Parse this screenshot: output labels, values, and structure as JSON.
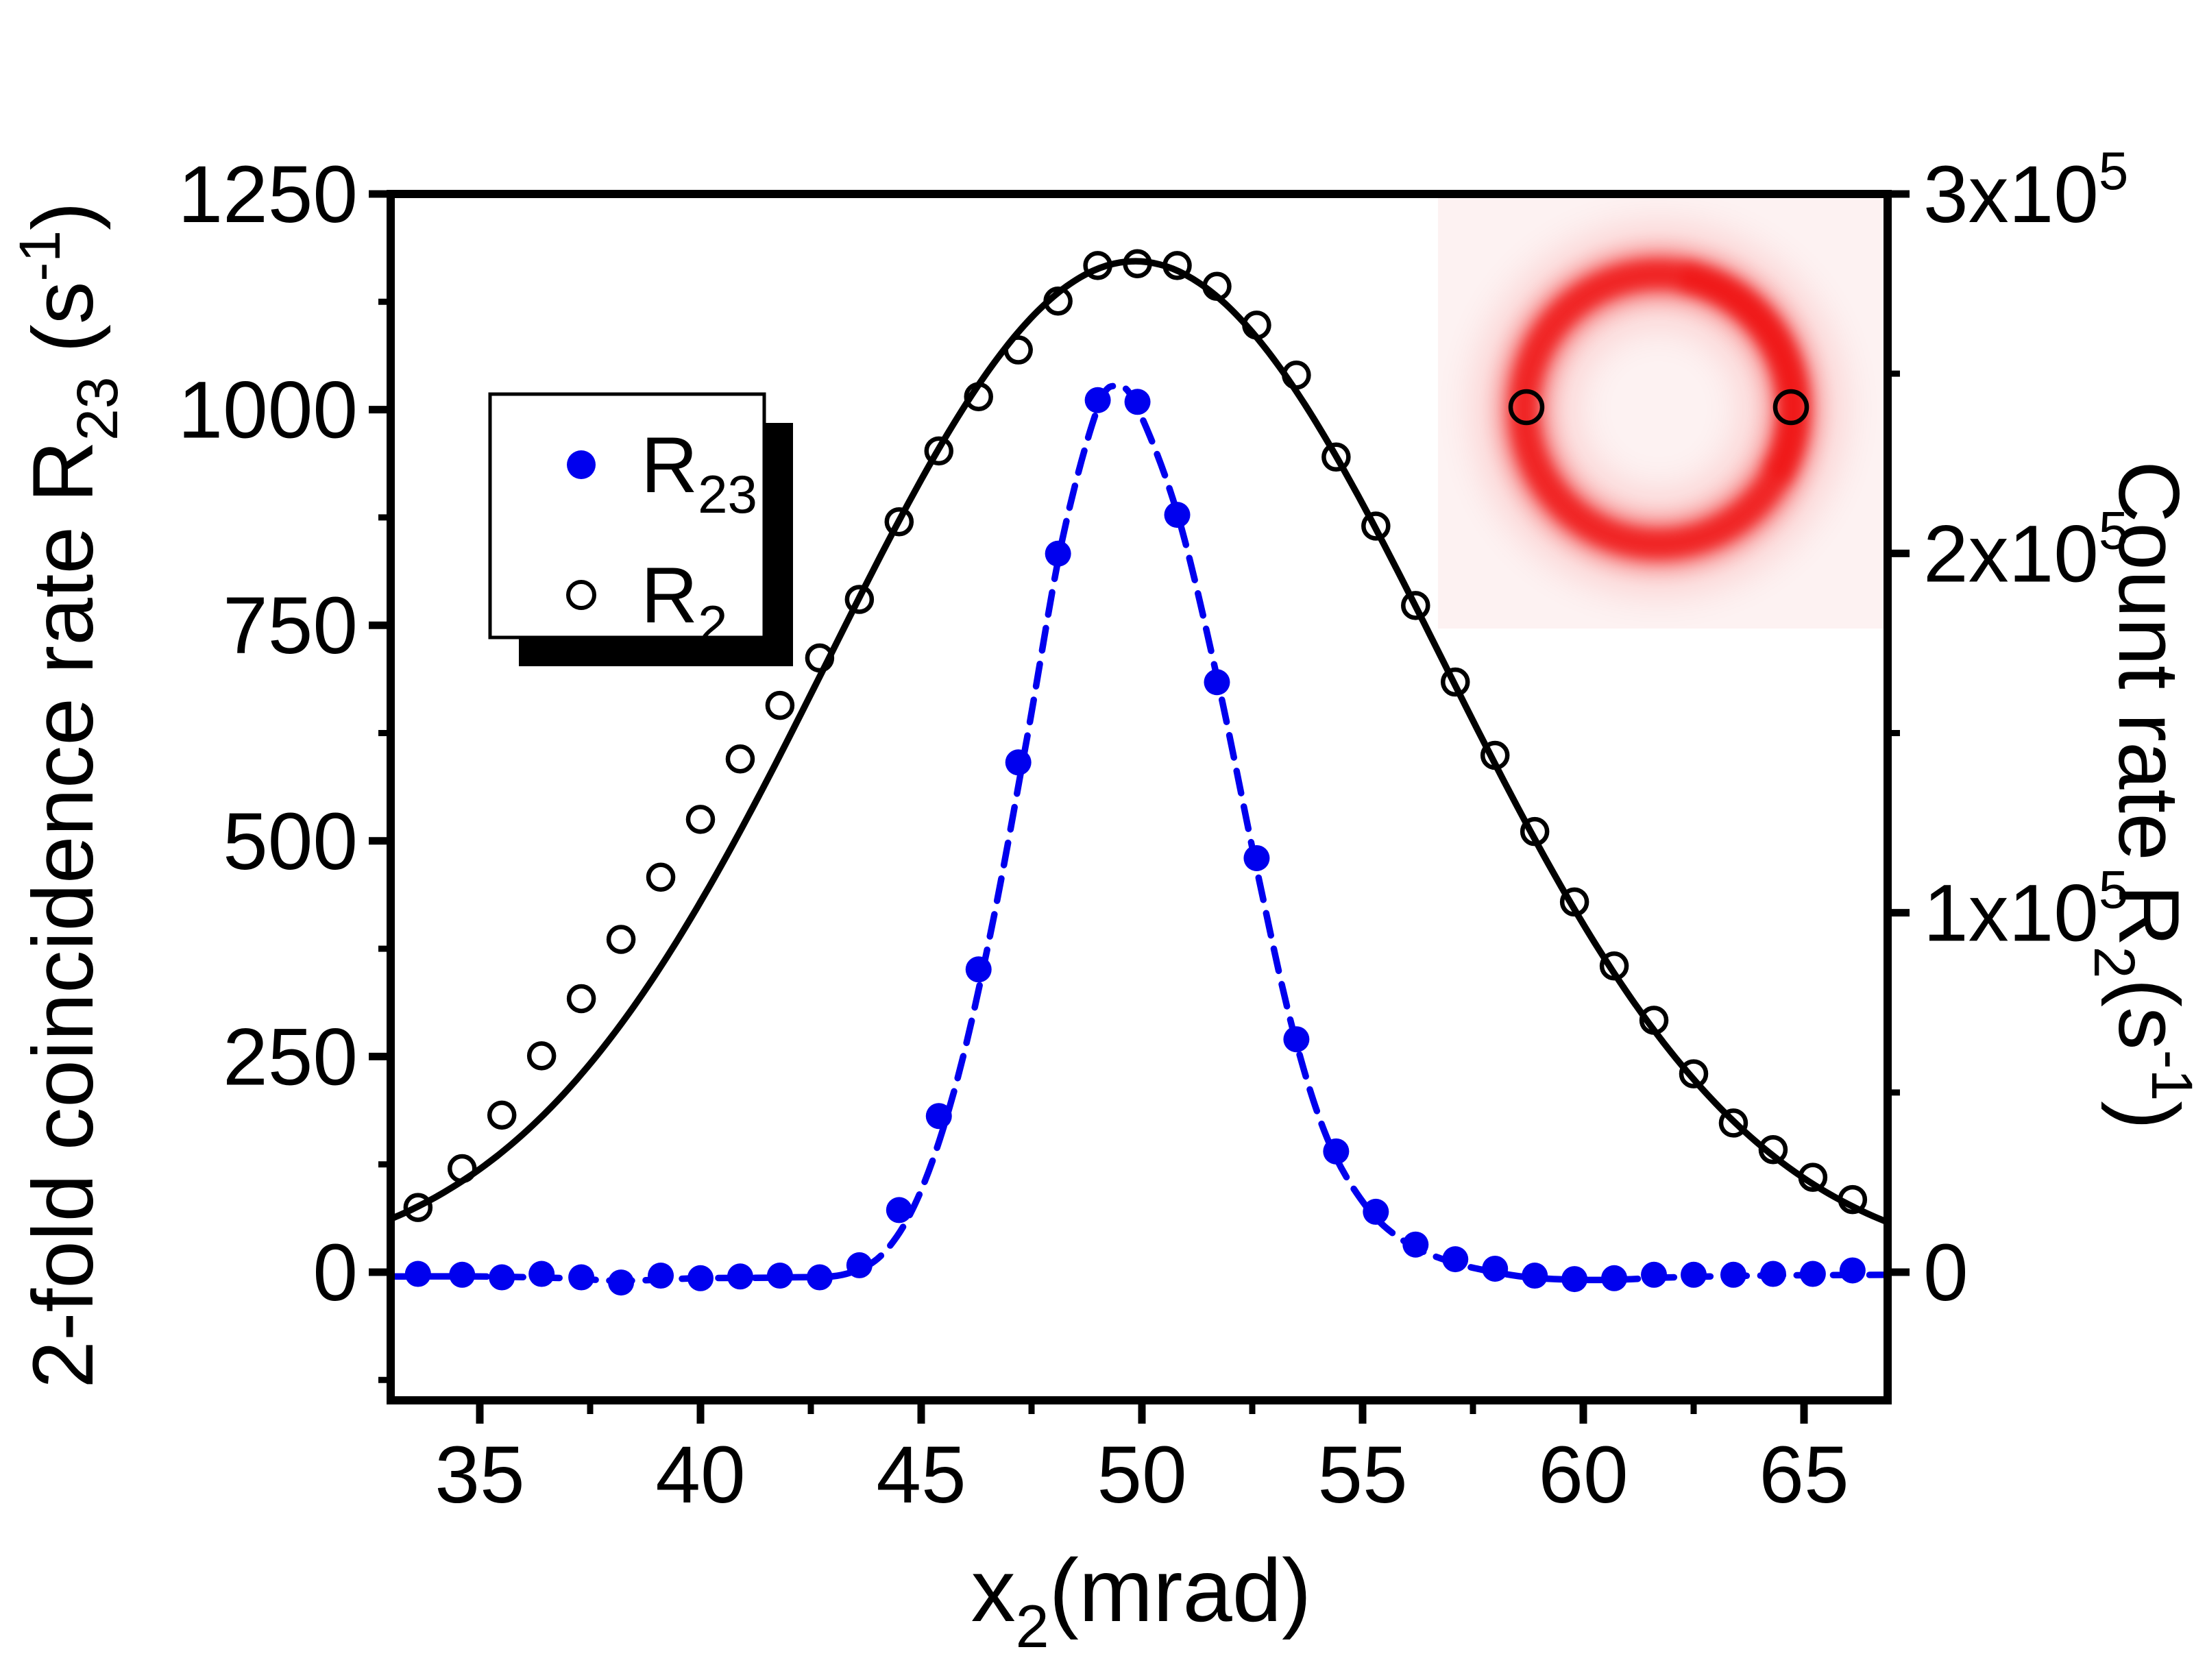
{
  "figure": {
    "background": "#ffffff",
    "axis_color": "#000000",
    "accent_blue": "#0000ee",
    "ring_red": "#ee0000"
  },
  "axes": {
    "x_label": {
      "main": "x",
      "sub": "2",
      "suffix": "(mrad)"
    },
    "y_left_label": {
      "main": "2-fold coincidence rate R",
      "sub": "23",
      "mid": " (s",
      "sup": "-1",
      "close": ")"
    },
    "y_right_label": {
      "main": "Count rate R",
      "sub": "2",
      "mid": "(s",
      "sup": "-1",
      "close": ")"
    }
  },
  "legend": {
    "entries": [
      {
        "name": "R23",
        "label_main": "R",
        "label_sub": "23",
        "marker": "filled-circle",
        "color": "#0000ee"
      },
      {
        "name": "R2",
        "label_main": "R",
        "label_sub": "2",
        "marker": "open-circle",
        "color": "#000000"
      }
    ]
  },
  "chart_data": {
    "type": "scatter",
    "title": "",
    "grid": false,
    "legend_position": "upper-left",
    "x_axis": {
      "label": "x2 (mrad)",
      "min": 33.0,
      "max": 66.9,
      "major_ticks": [
        35,
        40,
        45,
        50,
        55,
        60,
        65
      ],
      "major_tick_labels": [
        "35",
        "40",
        "45",
        "50",
        "55",
        "60",
        "65"
      ],
      "minor_ticks": [
        37.5,
        42.5,
        47.5,
        52.5,
        57.5,
        62.5
      ]
    },
    "y_axis_left": {
      "label": "2-fold coincidence rate R23 (s^-1)",
      "min": -150,
      "max": 1250,
      "major_ticks": [
        1250,
        1000,
        750,
        500,
        250,
        0
      ],
      "major_tick_labels": [
        "1250",
        "1000",
        "750",
        "500",
        "250",
        "0"
      ],
      "minor_ticks": [
        1125,
        875,
        625,
        375,
        125,
        -125
      ]
    },
    "y_axis_right": {
      "label": "Count rate R2 (s^-1)",
      "min": 0,
      "max": 300000,
      "major_ticks": [
        {
          "value": 300000,
          "mantissa": "3x10",
          "exp": "5"
        },
        {
          "value": 200000,
          "mantissa": "2x10",
          "exp": "5"
        },
        {
          "value": 100000,
          "mantissa": "1x10",
          "exp": "5"
        },
        {
          "value": 0,
          "mantissa": "0",
          "exp": ""
        }
      ],
      "minor_ticks": [
        250000,
        150000,
        50000
      ]
    },
    "axes_alignment": {
      "left_at_top": 1250,
      "right_at_top": 300000,
      "shared_zero": true
    },
    "x": [
      33.6,
      34.6,
      35.5,
      36.4,
      37.3,
      38.2,
      39.1,
      40.0,
      40.9,
      41.8,
      42.7,
      43.6,
      44.5,
      45.4,
      46.3,
      47.2,
      48.1,
      49.0,
      49.9,
      50.8,
      51.7,
      52.6,
      53.5,
      54.4,
      55.3,
      56.2,
      57.1,
      58.0,
      58.9,
      59.8,
      60.7,
      61.6,
      62.5,
      63.4,
      64.3,
      65.2,
      66.1
    ],
    "series": [
      {
        "name": "R23",
        "axis": "left",
        "color": "#0000ee",
        "marker": "filled-circle",
        "values": [
          -2,
          -3,
          -6,
          -2,
          -6,
          -12,
          -4,
          -7,
          -5,
          -4,
          -6,
          8,
          72,
          181,
          351,
          591,
          833,
          1011,
          1009,
          878,
          684,
          480,
          270,
          140,
          70,
          32,
          15,
          4,
          -4,
          -8,
          -7,
          -3,
          -3,
          -3,
          -2,
          -2,
          2
        ]
      },
      {
        "name": "R2",
        "axis": "right",
        "color": "#000000",
        "marker": "open-circle",
        "values_right": [
          18000,
          28800,
          43700,
          60200,
          76100,
          92600,
          109900,
          126000,
          142800,
          157700,
          170900,
          187200,
          208800,
          228500,
          243600,
          256600,
          270200,
          280100,
          280600,
          280100,
          274300,
          263500,
          249600,
          226800,
          207600,
          185500,
          164200,
          143800,
          122600,
          103000,
          85200,
          70100,
          55200,
          41500,
          34100,
          26400,
          20200
        ],
        "values_left_equivalent": [
          75,
          120,
          182,
          251,
          317,
          386,
          458,
          525,
          595,
          657,
          712,
          780,
          870,
          952,
          1015,
          1069,
          1126,
          1167,
          1169,
          1167,
          1143,
          1098,
          1040,
          945,
          865,
          773,
          684,
          599,
          511,
          429,
          355,
          292,
          230,
          173,
          142,
          110,
          84
        ]
      }
    ],
    "fits": [
      {
        "series": "R23",
        "style": "dashed",
        "color": "#0000ee",
        "control_points": [
          [
            33.0,
            -5
          ],
          [
            35,
            -5
          ],
          [
            37,
            -7
          ],
          [
            38.2,
            -10
          ],
          [
            40,
            -7
          ],
          [
            42,
            -6
          ],
          [
            43.3,
            -2
          ],
          [
            44.2,
            25
          ],
          [
            45,
            95
          ],
          [
            45.8,
            220
          ],
          [
            46.6,
            400
          ],
          [
            47.4,
            620
          ],
          [
            48.2,
            850
          ],
          [
            49.0,
            1002
          ],
          [
            49.45,
            1027
          ],
          [
            49.9,
            1002
          ],
          [
            50.8,
            880
          ],
          [
            51.7,
            690
          ],
          [
            52.6,
            468
          ],
          [
            53.4,
            285
          ],
          [
            54.2,
            155
          ],
          [
            55.1,
            75
          ],
          [
            56.0,
            34
          ],
          [
            57.0,
            12
          ],
          [
            58.0,
            0
          ],
          [
            59.0,
            -7
          ],
          [
            60.5,
            -9
          ],
          [
            62,
            -6
          ],
          [
            64,
            -4
          ],
          [
            66.9,
            -3
          ]
        ]
      },
      {
        "series": "R2",
        "style": "solid",
        "color": "#000000",
        "model": "gaussian",
        "amp": 1172,
        "center": 49.85,
        "sigma": 6.95,
        "baseline": 0,
        "range": [
          33.0,
          66.9
        ]
      }
    ]
  },
  "inset": {
    "description": "red annular beam profile image",
    "bg_color": "#fdf2f2",
    "ring_color": "#ee0000",
    "marker_color": "#000000",
    "detector_markers": [
      "left-of-ring",
      "right-of-ring"
    ]
  }
}
